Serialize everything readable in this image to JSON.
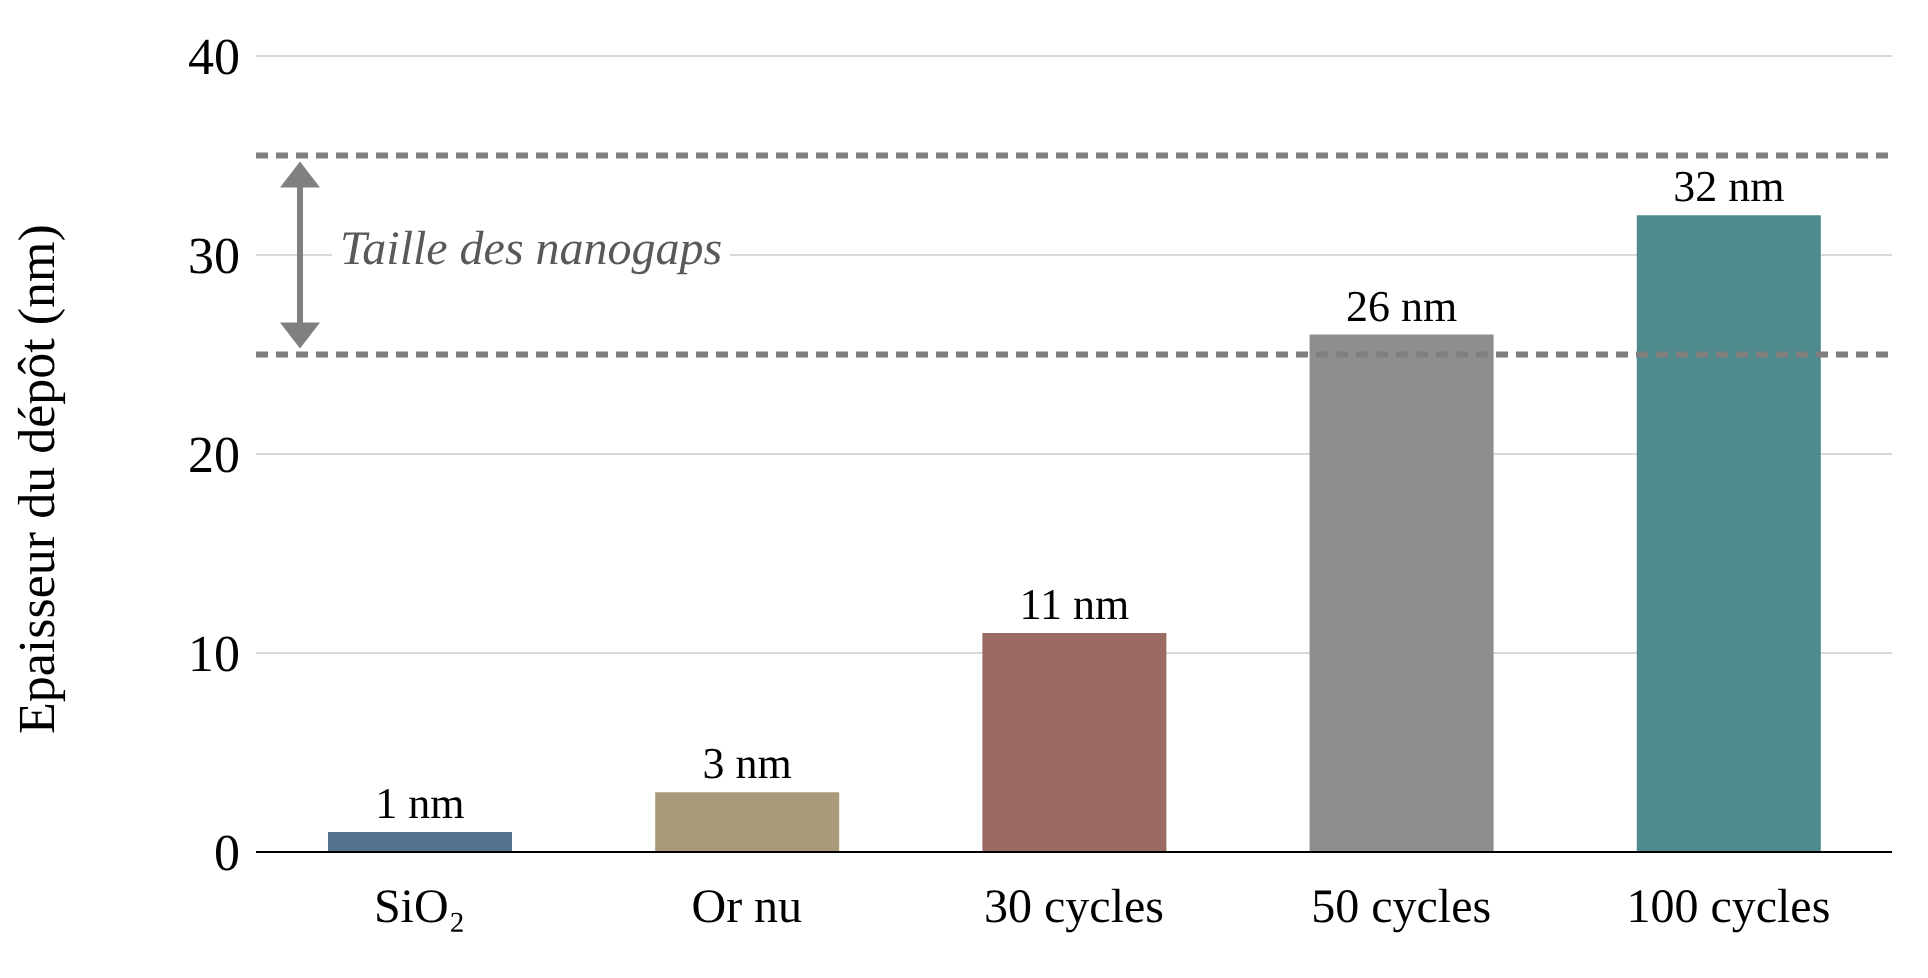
{
  "chart_data": {
    "type": "bar",
    "ylabel": "Epaisseur du dépôt (nm)",
    "categories": [
      "SiO₂",
      "Or nu",
      "30 cycles",
      "50 cycles",
      "100 cycles"
    ],
    "values": [
      1,
      3,
      11,
      26,
      32
    ],
    "colors": [
      "#56718b",
      "#a99a7c",
      "#9b6a63",
      "#8e8e8e",
      "#4f8a8c"
    ],
    "value_labels": [
      "1 nm",
      "3 nm",
      "11 nm",
      "26 nm",
      "32 nm"
    ],
    "ylim": [
      0,
      40
    ],
    "yticks": [
      0,
      10,
      20,
      30,
      40
    ],
    "grid": "y",
    "ref_lines": [
      {
        "axis": "y",
        "value": 35,
        "color": "#7f7f7f",
        "line_style": "dashed"
      },
      {
        "axis": "y",
        "value": 25,
        "color": "#7f7f7f",
        "line_style": "dashed"
      }
    ],
    "annotations": [
      "Taille des nanogaps"
    ]
  }
}
